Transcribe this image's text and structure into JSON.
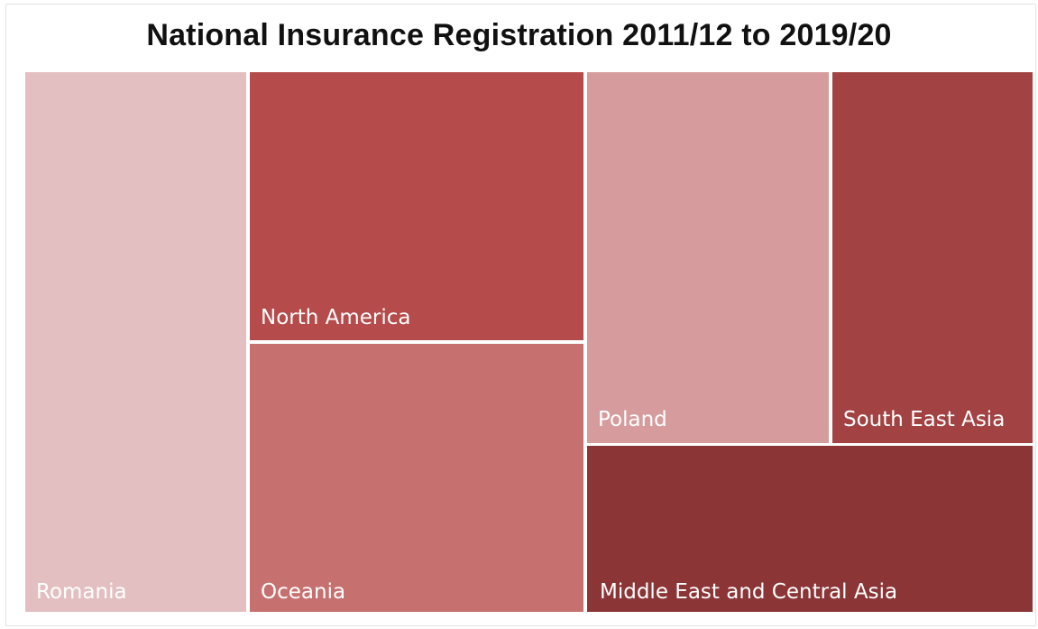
{
  "chart_data": {
    "type": "treemap",
    "title": "National Insurance Registration 2011/12 to 2019/20",
    "categories": [
      "Romania",
      "North America",
      "Oceania",
      "Poland",
      "South East Asia",
      "Middle East and Central Asia"
    ],
    "colors": {
      "Romania": "#e3bfc1",
      "North America": "#b54b4b",
      "Oceania": "#c67170",
      "Poland": "#d59b9d",
      "South East Asia": "#a34243",
      "Middle East and Central Asia": "#8b3537"
    }
  }
}
